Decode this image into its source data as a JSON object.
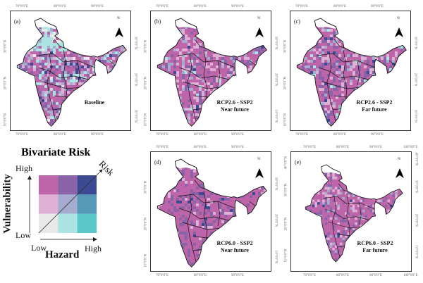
{
  "legend": {
    "title": "Bivariate Risk",
    "y_axis_label": "Vulnerability",
    "x_axis_label": "Hazard",
    "diagonal_label": "Risk",
    "y_high": "High",
    "y_low": "Low",
    "x_low": "Low",
    "x_high": "High",
    "colors": [
      [
        "#be64a8",
        "#8a62a8",
        "#3c4a94"
      ],
      [
        "#dfb0d6",
        "#a5acd0",
        "#5698b8"
      ],
      [
        "#e8e8e8",
        "#ace4e4",
        "#5ac8c8"
      ]
    ]
  },
  "north_label": "N",
  "panels": [
    {
      "label": "(a)",
      "title": [
        "Baseline"
      ],
      "lon_ticks": [
        "70°0'0\"E",
        "80°0'0\"E",
        "90°0'0\"E"
      ],
      "lat_ticks": [
        "30°0'0\"N",
        "20°0'0\"N",
        "10°0'0\"N"
      ]
    },
    {
      "label": "(b)",
      "title": [
        "RCP2.6 - SSP2",
        "Near future"
      ],
      "lon_ticks": [
        "70°0'0\"E",
        "80°0'0\"E",
        "90°0'0\"E"
      ],
      "lat_ticks": [
        "30°0'0\"N",
        "20°0'0\"N",
        "10°0'0\"N"
      ]
    },
    {
      "label": "(c)",
      "title": [
        "RCP2.6 - SSP2",
        "Far future"
      ],
      "lon_ticks": [
        "70°0'0\"E",
        "80°0'0\"E",
        "90°0'0\"E"
      ],
      "lat_ticks": [
        "30°0'0\"N",
        "20°0'0\"N",
        "10°0'0\"N"
      ]
    },
    {
      "label": "(d)",
      "title": [
        "RCP6.0 - SSP2",
        "Near future"
      ],
      "lon_ticks": [
        "70°0'0\"E",
        "80°0'0\"E",
        "90°0'0\"E"
      ],
      "lat_ticks": [
        "30°0'0\"N",
        "20°0'0\"N",
        "10°0'0\"N"
      ]
    },
    {
      "label": "(e)",
      "title": [
        "RCP6.0 - SSP2",
        "Far future"
      ],
      "lon_ticks": [
        "70°0'0\"E",
        "80°0'0\"E",
        "90°0'0\"E",
        "100°0'0\"E"
      ],
      "lat_ticks": [
        "40°0'0\"N",
        "30°0'0\"N",
        "20°0'0\"N",
        "10°0'0\"N"
      ]
    }
  ]
}
